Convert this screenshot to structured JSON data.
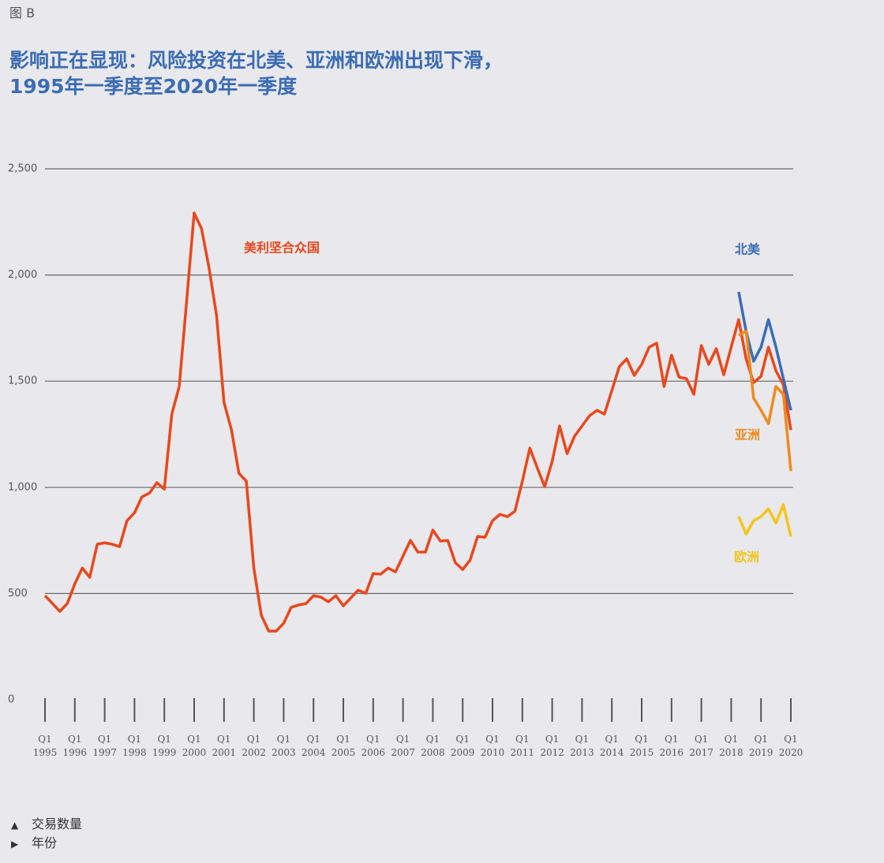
{
  "chart_data": {
    "type": "line",
    "figure_label": "图 B",
    "title": [
      "影响正在显现：风险投资在北美、亚洲和欧洲出现下滑，",
      "1995年一季度至2020年一季度"
    ],
    "categories": [
      "Q1 1995",
      null,
      null,
      null,
      "Q1 1996",
      null,
      null,
      null,
      "Q1 1997",
      null,
      null,
      null,
      "Q1 1998",
      null,
      null,
      null,
      "Q1 1999",
      null,
      null,
      null,
      "Q1 2000",
      null,
      null,
      null,
      "Q1 2001",
      null,
      null,
      null,
      "Q1 2002",
      null,
      null,
      null,
      "Q1 2003",
      null,
      null,
      null,
      "Q1 2004",
      null,
      null,
      null,
      "Q1 2005",
      null,
      null,
      null,
      "Q1 2006",
      null,
      null,
      null,
      "Q1 2007",
      null,
      null,
      null,
      "Q1 2008",
      null,
      null,
      null,
      "Q1 2009",
      null,
      null,
      null,
      "Q1 2010",
      null,
      null,
      null,
      "Q1 2011",
      null,
      null,
      null,
      "Q1 2012",
      null,
      null,
      null,
      "Q1 2013",
      null,
      null,
      null,
      "Q1 2014",
      null,
      null,
      null,
      "Q1 2015",
      null,
      null,
      null,
      "Q1 2016",
      null,
      null,
      null,
      "Q1 2017",
      null,
      null,
      null,
      "Q1 2018",
      null,
      null,
      null,
      "Q1 2019",
      null,
      null,
      null,
      "Q1 2020"
    ],
    "series": [
      {
        "name": "美利坚合众国",
        "color": "#e8481c",
        "values": [
          490,
          453,
          416,
          453,
          546,
          620,
          576,
          732,
          739,
          732,
          721,
          843,
          880,
          955,
          973,
          1022,
          992,
          1345,
          1475,
          1883,
          2292,
          2218,
          2032,
          1809,
          1400,
          1270,
          1066,
          1029,
          620,
          397,
          323,
          323,
          360,
          435,
          446,
          453,
          490,
          483,
          461,
          490,
          442,
          479,
          516,
          501,
          594,
          591,
          620,
          602,
          676,
          750,
          695,
          695,
          799,
          747,
          750,
          646,
          613,
          657,
          769,
          765,
          843,
          873,
          862,
          888,
          1029,
          1185,
          1092,
          1003,
          1122,
          1289,
          1159,
          1241,
          1289,
          1337,
          1363,
          1345,
          1456,
          1568,
          1605,
          1527,
          1579,
          1660,
          1679,
          1475,
          1623,
          1519,
          1512,
          1438,
          1668,
          1579,
          1653,
          1530,
          1660,
          1790,
          1605,
          1493,
          1523,
          1660,
          1549,
          1482,
          1270
        ]
      },
      {
        "name": "北美",
        "color": "#3a6db5",
        "values": [
          null,
          null,
          null,
          null,
          null,
          null,
          null,
          null,
          null,
          null,
          null,
          null,
          null,
          null,
          null,
          null,
          null,
          null,
          null,
          null,
          null,
          null,
          null,
          null,
          null,
          null,
          null,
          null,
          null,
          null,
          null,
          null,
          null,
          null,
          null,
          null,
          null,
          null,
          null,
          null,
          null,
          null,
          null,
          null,
          null,
          null,
          null,
          null,
          null,
          null,
          null,
          null,
          null,
          null,
          null,
          null,
          null,
          null,
          null,
          null,
          null,
          null,
          null,
          null,
          null,
          null,
          null,
          null,
          null,
          null,
          null,
          null,
          null,
          null,
          null,
          null,
          null,
          null,
          null,
          null,
          null,
          null,
          null,
          null,
          null,
          null,
          null,
          null,
          null,
          null,
          null,
          null,
          null,
          1920,
          1735,
          1594,
          1660,
          1790,
          1660,
          1512,
          1363
        ]
      },
      {
        "name": "亚洲",
        "color": "#ee8a1d",
        "values": [
          null,
          null,
          null,
          null,
          null,
          null,
          null,
          null,
          null,
          null,
          null,
          null,
          null,
          null,
          null,
          null,
          null,
          null,
          null,
          null,
          null,
          null,
          null,
          null,
          null,
          null,
          null,
          null,
          null,
          null,
          null,
          null,
          null,
          null,
          null,
          null,
          null,
          null,
          null,
          null,
          null,
          null,
          null,
          null,
          null,
          null,
          null,
          null,
          null,
          null,
          null,
          null,
          null,
          null,
          null,
          null,
          null,
          null,
          null,
          null,
          null,
          null,
          null,
          null,
          null,
          null,
          null,
          null,
          null,
          null,
          null,
          null,
          null,
          null,
          null,
          null,
          null,
          null,
          null,
          null,
          null,
          null,
          null,
          null,
          null,
          null,
          null,
          null,
          null,
          null,
          null,
          null,
          null,
          1716,
          1735,
          1420,
          1363,
          1300,
          1475,
          1438,
          1077
        ]
      },
      {
        "name": "欧洲",
        "color": "#f5c518",
        "values": [
          null,
          null,
          null,
          null,
          null,
          null,
          null,
          null,
          null,
          null,
          null,
          null,
          null,
          null,
          null,
          null,
          null,
          null,
          null,
          null,
          null,
          null,
          null,
          null,
          null,
          null,
          null,
          null,
          null,
          null,
          null,
          null,
          null,
          null,
          null,
          null,
          null,
          null,
          null,
          null,
          null,
          null,
          null,
          null,
          null,
          null,
          null,
          null,
          null,
          null,
          null,
          null,
          null,
          null,
          null,
          null,
          null,
          null,
          null,
          null,
          null,
          null,
          null,
          null,
          null,
          null,
          null,
          null,
          null,
          null,
          null,
          null,
          null,
          null,
          null,
          null,
          null,
          null,
          null,
          null,
          null,
          null,
          null,
          null,
          null,
          null,
          null,
          null,
          null,
          null,
          null,
          null,
          null,
          862,
          780,
          843,
          862,
          899,
          832,
          918,
          769
        ]
      }
    ],
    "ylim": [
      0,
      2500
    ],
    "yticks": [
      0,
      500,
      {
        "value": 1000,
        "label": "1,000"
      },
      {
        "value": 1500,
        "label": "1,500"
      },
      {
        "value": 2000,
        "label": "2,000"
      },
      {
        "value": 2500,
        "label": "2,500"
      }
    ],
    "grid": true,
    "footnotes": [
      "交易数量",
      "年份"
    ]
  }
}
